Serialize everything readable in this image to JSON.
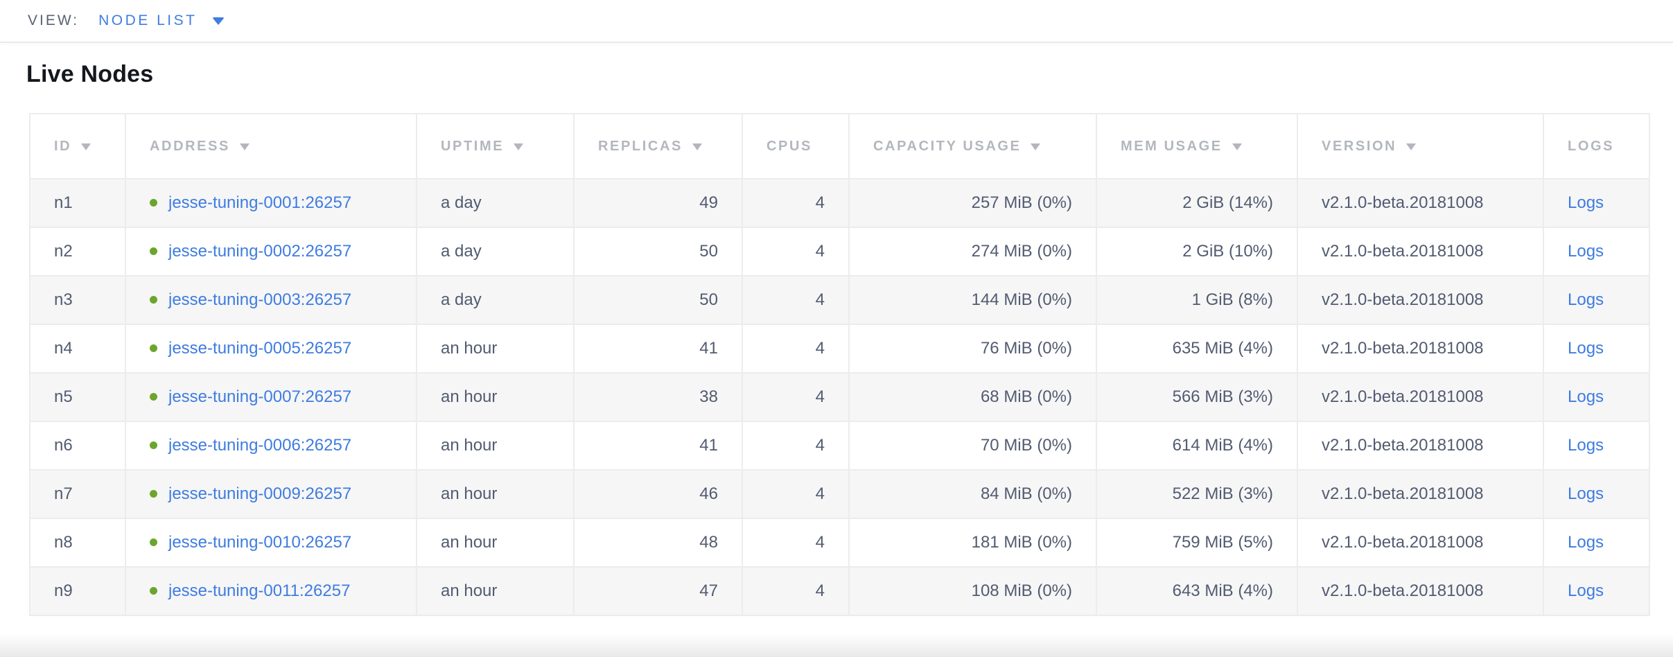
{
  "view_bar": {
    "label": "VIEW:",
    "selected": "NODE LIST"
  },
  "page": {
    "title": "Live Nodes"
  },
  "colors": {
    "accent_blue": "#3f7de0",
    "link_blue": "#3e7ce0",
    "healthy_dot_green": "#6ca52c",
    "header_gray": "#b3b7bd",
    "body_text": "#525b70",
    "row_stripe": "#f6f6f7"
  },
  "table": {
    "columns": [
      {
        "key": "id",
        "label": "ID",
        "sortable": true
      },
      {
        "key": "address",
        "label": "ADDRESS",
        "sortable": true
      },
      {
        "key": "uptime",
        "label": "UPTIME",
        "sortable": true
      },
      {
        "key": "replicas",
        "label": "REPLICAS",
        "sortable": true
      },
      {
        "key": "cpus",
        "label": "CPUS",
        "sortable": false
      },
      {
        "key": "capacity",
        "label": "CAPACITY USAGE",
        "sortable": true
      },
      {
        "key": "mem",
        "label": "MEM USAGE",
        "sortable": true
      },
      {
        "key": "version",
        "label": "VERSION",
        "sortable": true
      },
      {
        "key": "logs",
        "label": "LOGS",
        "sortable": false
      }
    ],
    "rows": [
      {
        "id": "n1",
        "status": "healthy",
        "address": "jesse-tuning-0001:26257",
        "uptime": "a day",
        "replicas": "49",
        "cpus": "4",
        "capacity": "257 MiB (0%)",
        "mem": "2 GiB (14%)",
        "version": "v2.1.0-beta.20181008",
        "logs": "Logs"
      },
      {
        "id": "n2",
        "status": "healthy",
        "address": "jesse-tuning-0002:26257",
        "uptime": "a day",
        "replicas": "50",
        "cpus": "4",
        "capacity": "274 MiB (0%)",
        "mem": "2 GiB (10%)",
        "version": "v2.1.0-beta.20181008",
        "logs": "Logs"
      },
      {
        "id": "n3",
        "status": "healthy",
        "address": "jesse-tuning-0003:26257",
        "uptime": "a day",
        "replicas": "50",
        "cpus": "4",
        "capacity": "144 MiB (0%)",
        "mem": "1 GiB (8%)",
        "version": "v2.1.0-beta.20181008",
        "logs": "Logs"
      },
      {
        "id": "n4",
        "status": "healthy",
        "address": "jesse-tuning-0005:26257",
        "uptime": "an hour",
        "replicas": "41",
        "cpus": "4",
        "capacity": "76 MiB (0%)",
        "mem": "635 MiB (4%)",
        "version": "v2.1.0-beta.20181008",
        "logs": "Logs"
      },
      {
        "id": "n5",
        "status": "healthy",
        "address": "jesse-tuning-0007:26257",
        "uptime": "an hour",
        "replicas": "38",
        "cpus": "4",
        "capacity": "68 MiB (0%)",
        "mem": "566 MiB (3%)",
        "version": "v2.1.0-beta.20181008",
        "logs": "Logs"
      },
      {
        "id": "n6",
        "status": "healthy",
        "address": "jesse-tuning-0006:26257",
        "uptime": "an hour",
        "replicas": "41",
        "cpus": "4",
        "capacity": "70 MiB (0%)",
        "mem": "614 MiB (4%)",
        "version": "v2.1.0-beta.20181008",
        "logs": "Logs"
      },
      {
        "id": "n7",
        "status": "healthy",
        "address": "jesse-tuning-0009:26257",
        "uptime": "an hour",
        "replicas": "46",
        "cpus": "4",
        "capacity": "84 MiB (0%)",
        "mem": "522 MiB (3%)",
        "version": "v2.1.0-beta.20181008",
        "logs": "Logs"
      },
      {
        "id": "n8",
        "status": "healthy",
        "address": "jesse-tuning-0010:26257",
        "uptime": "an hour",
        "replicas": "48",
        "cpus": "4",
        "capacity": "181 MiB (0%)",
        "mem": "759 MiB (5%)",
        "version": "v2.1.0-beta.20181008",
        "logs": "Logs"
      },
      {
        "id": "n9",
        "status": "healthy",
        "address": "jesse-tuning-0011:26257",
        "uptime": "an hour",
        "replicas": "47",
        "cpus": "4",
        "capacity": "108 MiB (0%)",
        "mem": "643 MiB (4%)",
        "version": "v2.1.0-beta.20181008",
        "logs": "Logs"
      }
    ]
  }
}
